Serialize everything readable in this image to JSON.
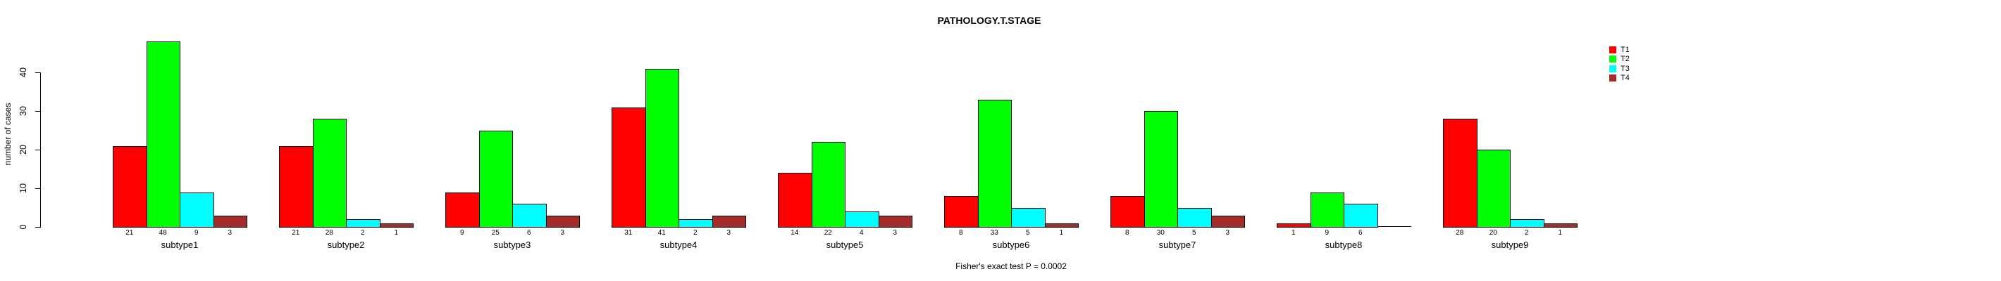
{
  "chart_data": {
    "type": "bar",
    "title": "PATHOLOGY.T.STAGE",
    "ylabel": "number of cases",
    "xlabel": "",
    "ylim": [
      0,
      48
    ],
    "yticks": [
      0,
      10,
      20,
      30,
      40
    ],
    "grid": false,
    "legend_position": "top-right",
    "bar_border_color": "#000000",
    "background_color": "#ffffff",
    "value_labels_shown": true,
    "categories": [
      "subtype1",
      "subtype2",
      "subtype3",
      "subtype4",
      "subtype5",
      "subtype6",
      "subtype7",
      "subtype8",
      "subtype9"
    ],
    "series": [
      {
        "name": "T1",
        "color": "#FF0000",
        "values": [
          21,
          21,
          9,
          31,
          14,
          8,
          8,
          1,
          28
        ]
      },
      {
        "name": "T2",
        "color": "#00FF00",
        "values": [
          48,
          28,
          25,
          41,
          22,
          33,
          30,
          9,
          20
        ]
      },
      {
        "name": "T3",
        "color": "#00FFFF",
        "values": [
          9,
          2,
          6,
          2,
          4,
          5,
          5,
          6,
          2
        ]
      },
      {
        "name": "T4",
        "color": "#A52A2A",
        "values": [
          3,
          1,
          3,
          3,
          3,
          1,
          3,
          0,
          1
        ]
      }
    ],
    "annotation": "Fisher's exact test P = 0.0002"
  }
}
